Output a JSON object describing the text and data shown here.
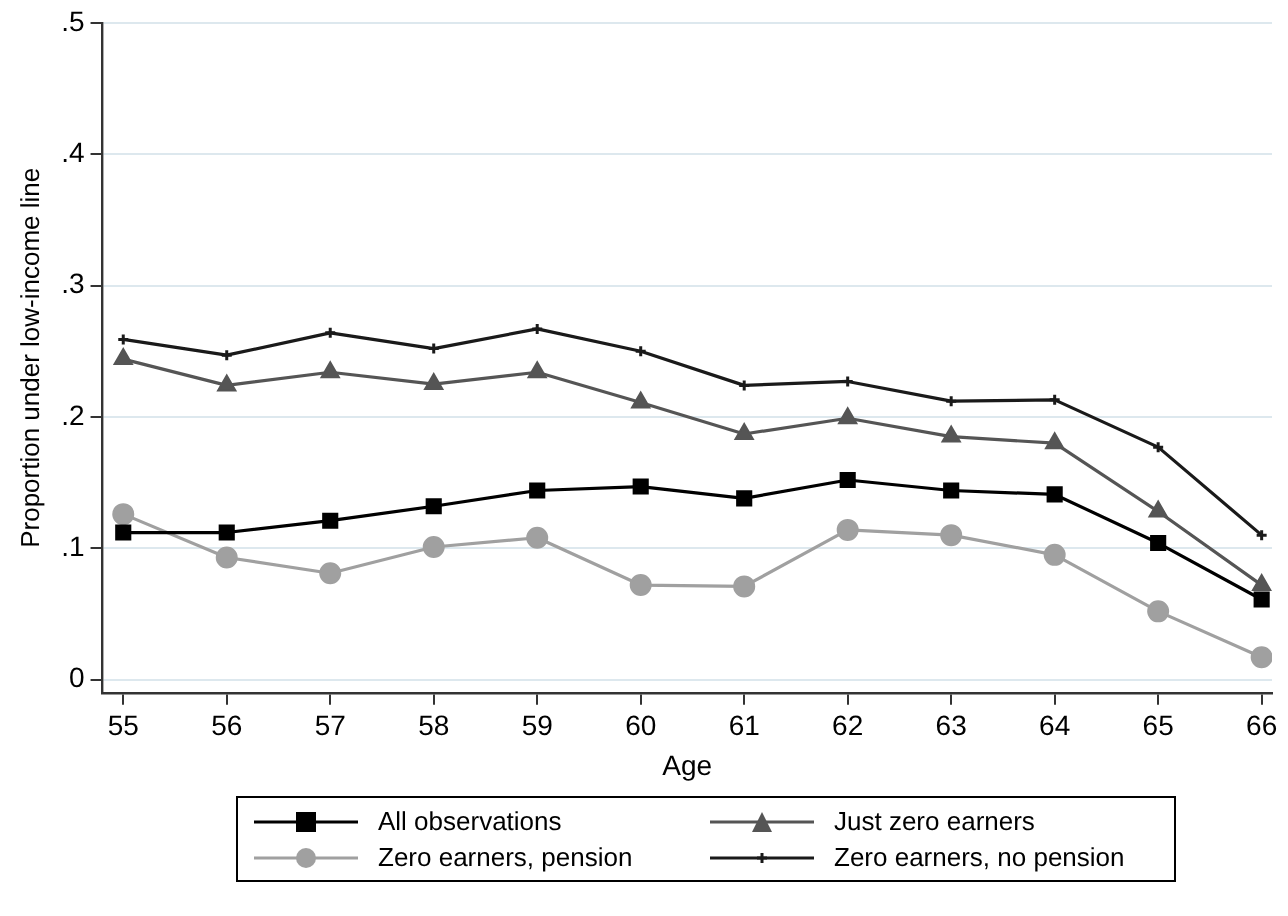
{
  "chart_data": {
    "type": "line",
    "xlabel": "Age",
    "ylabel": "Proportion under low-income line",
    "x": [
      55,
      56,
      57,
      58,
      59,
      60,
      61,
      62,
      63,
      64,
      65,
      66
    ],
    "xlim": [
      54.8,
      66.1
    ],
    "xticks": [
      55,
      56,
      57,
      58,
      59,
      60,
      61,
      62,
      63,
      64,
      65,
      66
    ],
    "ylim": [
      -0.01,
      0.5
    ],
    "yticks": [
      {
        "value": 0,
        "label": "0"
      },
      {
        "value": 0.1,
        "label": ".1"
      },
      {
        "value": 0.2,
        "label": ".2"
      },
      {
        "value": 0.3,
        "label": ".3"
      },
      {
        "value": 0.4,
        "label": ".4"
      },
      {
        "value": 0.5,
        "label": ".5"
      }
    ],
    "grid": "y",
    "legend": "bottom",
    "line_style": "solid",
    "series": [
      {
        "name": "All observations",
        "color": "#000000",
        "marker": "square",
        "values": [
          0.112,
          0.112,
          0.121,
          0.132,
          0.144,
          0.147,
          0.138,
          0.152,
          0.144,
          0.141,
          0.104,
          0.061
        ]
      },
      {
        "name": "Just zero earners",
        "color": "#555555",
        "marker": "triangle",
        "values": [
          0.244,
          0.224,
          0.234,
          0.225,
          0.234,
          0.211,
          0.187,
          0.199,
          0.185,
          0.18,
          0.128,
          0.072
        ]
      },
      {
        "name": "Zero earners, pension",
        "color": "#a0a0a0",
        "marker": "circle",
        "values": [
          0.126,
          0.093,
          0.081,
          0.101,
          0.108,
          0.072,
          0.071,
          0.114,
          0.11,
          0.095,
          0.052,
          0.017
        ]
      },
      {
        "name": "Zero earners, no pension",
        "color": "#1a1a1a",
        "marker": "cross",
        "values": [
          0.259,
          0.247,
          0.264,
          0.252,
          0.267,
          0.25,
          0.224,
          0.227,
          0.212,
          0.213,
          0.177,
          0.11
        ]
      }
    ]
  }
}
